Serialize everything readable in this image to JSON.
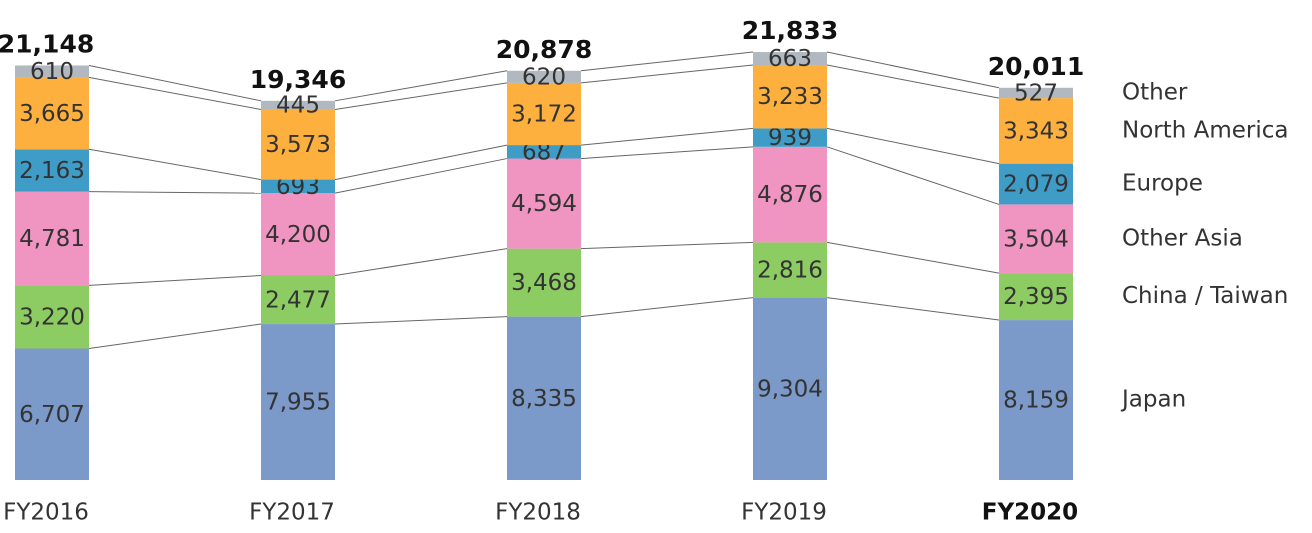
{
  "chart_data": {
    "type": "stacked_bar",
    "categories": [
      "FY2016",
      "FY2017",
      "FY2018",
      "FY2019",
      "FY2020"
    ],
    "highlight_index": 4,
    "series": [
      {
        "name": "Japan",
        "color": "#7b9ac9",
        "values": [
          6707,
          7955,
          8335,
          9304,
          8159
        ],
        "value_labels": [
          "6,707",
          "7,955",
          "8,335",
          "9,304",
          "8,159"
        ]
      },
      {
        "name": "China / Taiwan",
        "color": "#8dcb63",
        "values": [
          3220,
          2477,
          3468,
          2816,
          2395
        ],
        "value_labels": [
          "3,220",
          "2,477",
          "3,468",
          "2,816",
          "2,395"
        ]
      },
      {
        "name": "Other Asia",
        "color": "#f094c1",
        "values": [
          4781,
          4200,
          4594,
          4876,
          3504
        ],
        "value_labels": [
          "4,781",
          "4,200",
          "4,594",
          "4,876",
          "3,504"
        ]
      },
      {
        "name": "Europe",
        "color": "#3f9cc7",
        "values": [
          2163,
          693,
          687,
          939,
          2079
        ],
        "value_labels": [
          "2,163",
          "693",
          "687",
          "939",
          "2,079"
        ]
      },
      {
        "name": "North America",
        "color": "#fdb03d",
        "values": [
          3665,
          3573,
          3172,
          3233,
          3343
        ],
        "value_labels": [
          "3,665",
          "3,573",
          "3,172",
          "3,233",
          "3,343"
        ]
      },
      {
        "name": "Other",
        "color": "#b1b8bf",
        "values": [
          610,
          445,
          620,
          663,
          527
        ],
        "value_labels": [
          "610",
          "445",
          "620",
          "663",
          "527"
        ]
      }
    ],
    "totals": [
      21148,
      19346,
      20878,
      21833,
      20011
    ],
    "total_labels": [
      "21,148",
      "19,346",
      "20,878",
      "21,833",
      "20,011"
    ]
  }
}
